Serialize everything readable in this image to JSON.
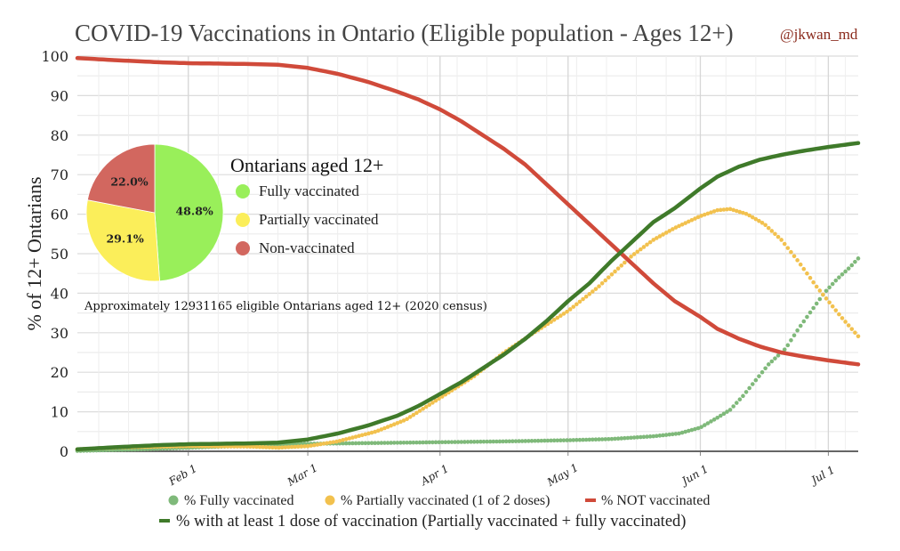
{
  "chart_data": {
    "type": "line",
    "title": "COVID-19 Vaccinations in Ontario (Eligible population - Ages 12+)",
    "attribution": "@jkwan_md",
    "xlabel": "",
    "ylabel": "% of 12+ Ontarians",
    "x_unit": "day of 2021 (0 = Jan 1)",
    "xlim": [
      5,
      188
    ],
    "ylim": [
      0,
      100
    ],
    "yticks": [
      0,
      10,
      20,
      30,
      40,
      50,
      60,
      70,
      80,
      90,
      100
    ],
    "xticks": [
      {
        "day": 31,
        "label": "Feb 1"
      },
      {
        "day": 59,
        "label": "Mar 1"
      },
      {
        "day": 90,
        "label": "Apr 1"
      },
      {
        "day": 120,
        "label": "May 1"
      },
      {
        "day": 151,
        "label": "Jun 1"
      },
      {
        "day": 181,
        "label": "Jul 1"
      }
    ],
    "grid": true,
    "legend_position": "bottom",
    "series": [
      {
        "name": "% Fully vaccinated",
        "style": "dots",
        "color": "#7fb97a",
        "points": [
          [
            5,
            0.1
          ],
          [
            20,
            0.5
          ],
          [
            31,
            0.9
          ],
          [
            45,
            1.4
          ],
          [
            59,
            1.9
          ],
          [
            75,
            2.1
          ],
          [
            90,
            2.3
          ],
          [
            105,
            2.5
          ],
          [
            120,
            2.8
          ],
          [
            130,
            3.1
          ],
          [
            140,
            3.8
          ],
          [
            146,
            4.5
          ],
          [
            151,
            6.0
          ],
          [
            155,
            8.5
          ],
          [
            158,
            10.5
          ],
          [
            161,
            14
          ],
          [
            164,
            18
          ],
          [
            167,
            22
          ],
          [
            171,
            26
          ],
          [
            174,
            31
          ],
          [
            177,
            35.5
          ],
          [
            180,
            40
          ],
          [
            183,
            43.5
          ],
          [
            186,
            46.5
          ],
          [
            188,
            48.8
          ]
        ]
      },
      {
        "name": "% Partially vaccinated (1 of 2 doses)",
        "style": "dots",
        "color": "#f2c14e",
        "points": [
          [
            5,
            0.5
          ],
          [
            15,
            1.0
          ],
          [
            31,
            1.3
          ],
          [
            45,
            1.2
          ],
          [
            52,
            0.9
          ],
          [
            59,
            1.3
          ],
          [
            66,
            2.5
          ],
          [
            75,
            5.0
          ],
          [
            82,
            8.0
          ],
          [
            90,
            13.5
          ],
          [
            98,
            19
          ],
          [
            105,
            25
          ],
          [
            112,
            30
          ],
          [
            120,
            35.5
          ],
          [
            127,
            41.5
          ],
          [
            135,
            49.5
          ],
          [
            140,
            53.5
          ],
          [
            145,
            56.5
          ],
          [
            151,
            59.5
          ],
          [
            155,
            61
          ],
          [
            158,
            61.3
          ],
          [
            162,
            60
          ],
          [
            166,
            57.5
          ],
          [
            170,
            53.5
          ],
          [
            174,
            48
          ],
          [
            178,
            42
          ],
          [
            181,
            38
          ],
          [
            184,
            34
          ],
          [
            188,
            29.1
          ]
        ]
      },
      {
        "name": "% NOT vaccinated",
        "style": "line",
        "color": "#d04a3a",
        "points": [
          [
            5,
            99.5
          ],
          [
            15,
            98.9
          ],
          [
            25,
            98.4
          ],
          [
            31,
            98.2
          ],
          [
            45,
            98.0
          ],
          [
            52,
            97.8
          ],
          [
            59,
            97.0
          ],
          [
            66,
            95.5
          ],
          [
            73,
            93.5
          ],
          [
            80,
            91.0
          ],
          [
            85,
            89.0
          ],
          [
            90,
            86.5
          ],
          [
            95,
            83.5
          ],
          [
            100,
            80.0
          ],
          [
            105,
            76.5
          ],
          [
            110,
            72.5
          ],
          [
            115,
            67.5
          ],
          [
            120,
            62.5
          ],
          [
            125,
            57.5
          ],
          [
            130,
            52.5
          ],
          [
            135,
            47.5
          ],
          [
            140,
            42.5
          ],
          [
            145,
            38.0
          ],
          [
            151,
            34.0
          ],
          [
            155,
            31.0
          ],
          [
            160,
            28.5
          ],
          [
            165,
            26.5
          ],
          [
            170,
            25.0
          ],
          [
            175,
            24.0
          ],
          [
            181,
            23.0
          ],
          [
            188,
            22.0
          ]
        ]
      },
      {
        "name": "% with at least 1 dose of vaccination (Partially vaccinated + fully vaccinated)",
        "style": "line",
        "color": "#3f7a2a",
        "points": [
          [
            5,
            0.5
          ],
          [
            15,
            1.1
          ],
          [
            25,
            1.6
          ],
          [
            31,
            1.8
          ],
          [
            45,
            2.0
          ],
          [
            52,
            2.2
          ],
          [
            59,
            3.0
          ],
          [
            66,
            4.5
          ],
          [
            73,
            6.5
          ],
          [
            80,
            9.0
          ],
          [
            85,
            11.5
          ],
          [
            90,
            14.5
          ],
          [
            95,
            17.5
          ],
          [
            100,
            21.0
          ],
          [
            105,
            24.5
          ],
          [
            110,
            28.5
          ],
          [
            115,
            33.0
          ],
          [
            120,
            38.0
          ],
          [
            125,
            42.5
          ],
          [
            130,
            48.0
          ],
          [
            135,
            53.0
          ],
          [
            140,
            58.0
          ],
          [
            145,
            61.5
          ],
          [
            151,
            66.5
          ],
          [
            155,
            69.5
          ],
          [
            160,
            72.0
          ],
          [
            165,
            73.8
          ],
          [
            170,
            75.0
          ],
          [
            175,
            76.0
          ],
          [
            181,
            77.0
          ],
          [
            188,
            78.0
          ]
        ]
      }
    ],
    "inset_pie": {
      "title": "Ontarians aged 12+",
      "slices": [
        {
          "label": "Fully vaccinated",
          "value": 48.8,
          "display": "48.8%",
          "color": "#99ef5a"
        },
        {
          "label": "Partially vaccinated",
          "value": 29.1,
          "display": "29.1%",
          "color": "#fbee5a"
        },
        {
          "label": "Non-vaccinated",
          "value": 22.0,
          "display": "22.0%",
          "color": "#d2675f"
        }
      ],
      "note": "Approximately 12931165 eligible Ontarians aged 12+ (2020 census)"
    }
  }
}
